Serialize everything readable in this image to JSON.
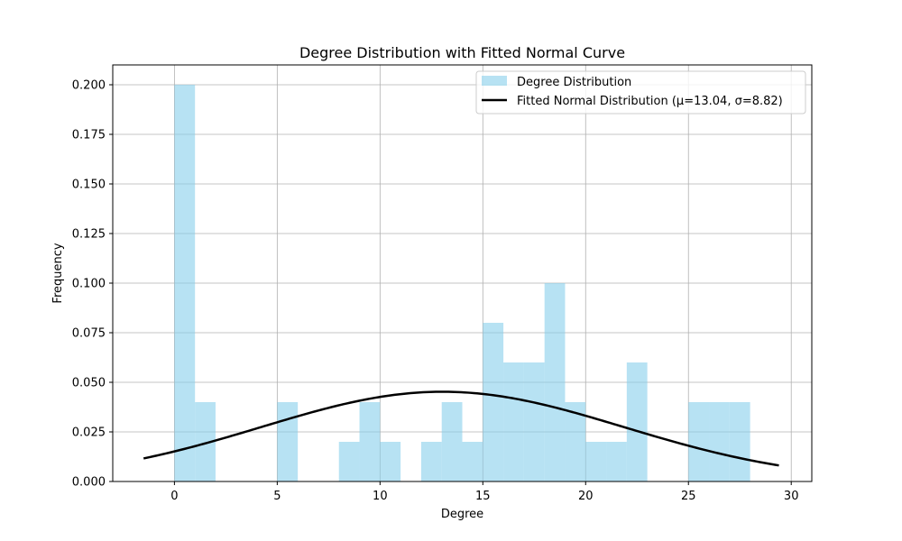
{
  "chart_data": {
    "type": "bar",
    "title": "Degree Distribution with Fitted Normal Curve",
    "xlabel": "Degree",
    "ylabel": "Frequency",
    "xlim": [
      -3,
      31
    ],
    "ylim": [
      0,
      0.21
    ],
    "x_ticks": [
      0,
      5,
      10,
      15,
      20,
      25,
      30
    ],
    "y_ticks": [
      0.0,
      0.025,
      0.05,
      0.075,
      0.1,
      0.125,
      0.15,
      0.175,
      0.2
    ],
    "y_tick_labels": [
      "0.000",
      "0.025",
      "0.050",
      "0.075",
      "0.100",
      "0.125",
      "0.150",
      "0.175",
      "0.200"
    ],
    "grid": true,
    "legend_position": "top-right",
    "histogram": {
      "name": "Degree Distribution",
      "color": "#87CEEB",
      "bins": [
        {
          "start": 0,
          "end": 1,
          "value": 0.2
        },
        {
          "start": 1,
          "end": 2,
          "value": 0.04
        },
        {
          "start": 5,
          "end": 6,
          "value": 0.04
        },
        {
          "start": 8,
          "end": 9,
          "value": 0.02
        },
        {
          "start": 9,
          "end": 10,
          "value": 0.04
        },
        {
          "start": 10,
          "end": 11,
          "value": 0.02
        },
        {
          "start": 12,
          "end": 13,
          "value": 0.02
        },
        {
          "start": 13,
          "end": 14,
          "value": 0.04
        },
        {
          "start": 14,
          "end": 15,
          "value": 0.02
        },
        {
          "start": 15,
          "end": 16,
          "value": 0.08
        },
        {
          "start": 16,
          "end": 17,
          "value": 0.06
        },
        {
          "start": 17,
          "end": 18,
          "value": 0.06
        },
        {
          "start": 18,
          "end": 19,
          "value": 0.1
        },
        {
          "start": 19,
          "end": 20,
          "value": 0.04
        },
        {
          "start": 20,
          "end": 21,
          "value": 0.02
        },
        {
          "start": 21,
          "end": 22,
          "value": 0.02
        },
        {
          "start": 22,
          "end": 23,
          "value": 0.06
        },
        {
          "start": 25,
          "end": 26,
          "value": 0.04
        },
        {
          "start": 26,
          "end": 27,
          "value": 0.04
        },
        {
          "start": 27,
          "end": 28,
          "value": 0.04
        }
      ]
    },
    "curve": {
      "name": "Fitted Normal Distribution (μ=13.04, σ=8.82)",
      "type": "line",
      "color": "#000000",
      "mu": 13.04,
      "sigma": 8.82,
      "x_range": [
        -1.5,
        29.4
      ]
    }
  }
}
